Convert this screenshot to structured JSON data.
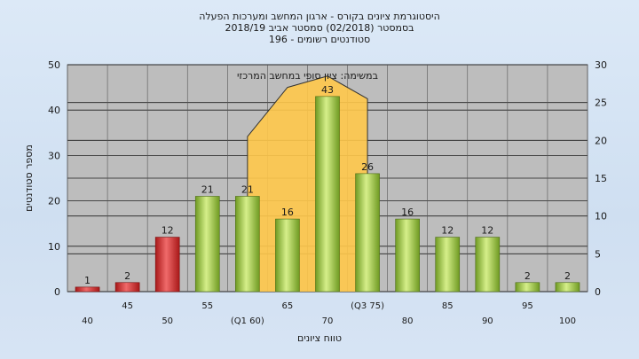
{
  "title_lines": [
    "היסטוגרמת ציונים בקורס - ארגון המחשב ומערכות הפעלה",
    "בסמסטר  (02/2018)  סמסטר אביב 2018/19",
    "סטודנטים רשומים - 196"
  ],
  "chart_data": {
    "type": "bar",
    "title": "היסטוגרמת ציונים בקורס - ארגון המחשב ומערכות הפעלה",
    "xlabel": "טווח ציונים",
    "ylabel": "מספר סטודנטים",
    "ylim": [
      0,
      50
    ],
    "y_ticks": [
      0,
      10,
      20,
      30,
      40,
      50
    ],
    "y2lim": [
      0,
      30
    ],
    "y2_ticks": [
      0,
      5,
      10,
      15,
      20,
      25,
      30
    ],
    "grid": true,
    "categories": [
      "40",
      "45",
      "50",
      "55",
      "(Q1 60)",
      "65",
      "70",
      "(Q3 75)",
      "80",
      "85",
      "90",
      "95",
      "100"
    ],
    "values": [
      1,
      2,
      12,
      21,
      21,
      16,
      43,
      26,
      16,
      12,
      12,
      2,
      2
    ],
    "bar_colors": [
      "#d42a2a",
      "#d42a2a",
      "#d42a2a",
      "#8fbf3a",
      "#8fbf3a",
      "#8fbf3a",
      "#8fbf3a",
      "#8fbf3a",
      "#8fbf3a",
      "#8fbf3a",
      "#8fbf3a",
      "#8fbf3a",
      "#8fbf3a"
    ],
    "area_annotation": "במשימה: ציון סופי במחשב המרכזי",
    "area_color": "#ffc84a",
    "area_x_range": [
      "(Q1 60)",
      "(Q3 75)"
    ],
    "area_values_y2": [
      20.5,
      27,
      28.5,
      25.5
    ]
  }
}
